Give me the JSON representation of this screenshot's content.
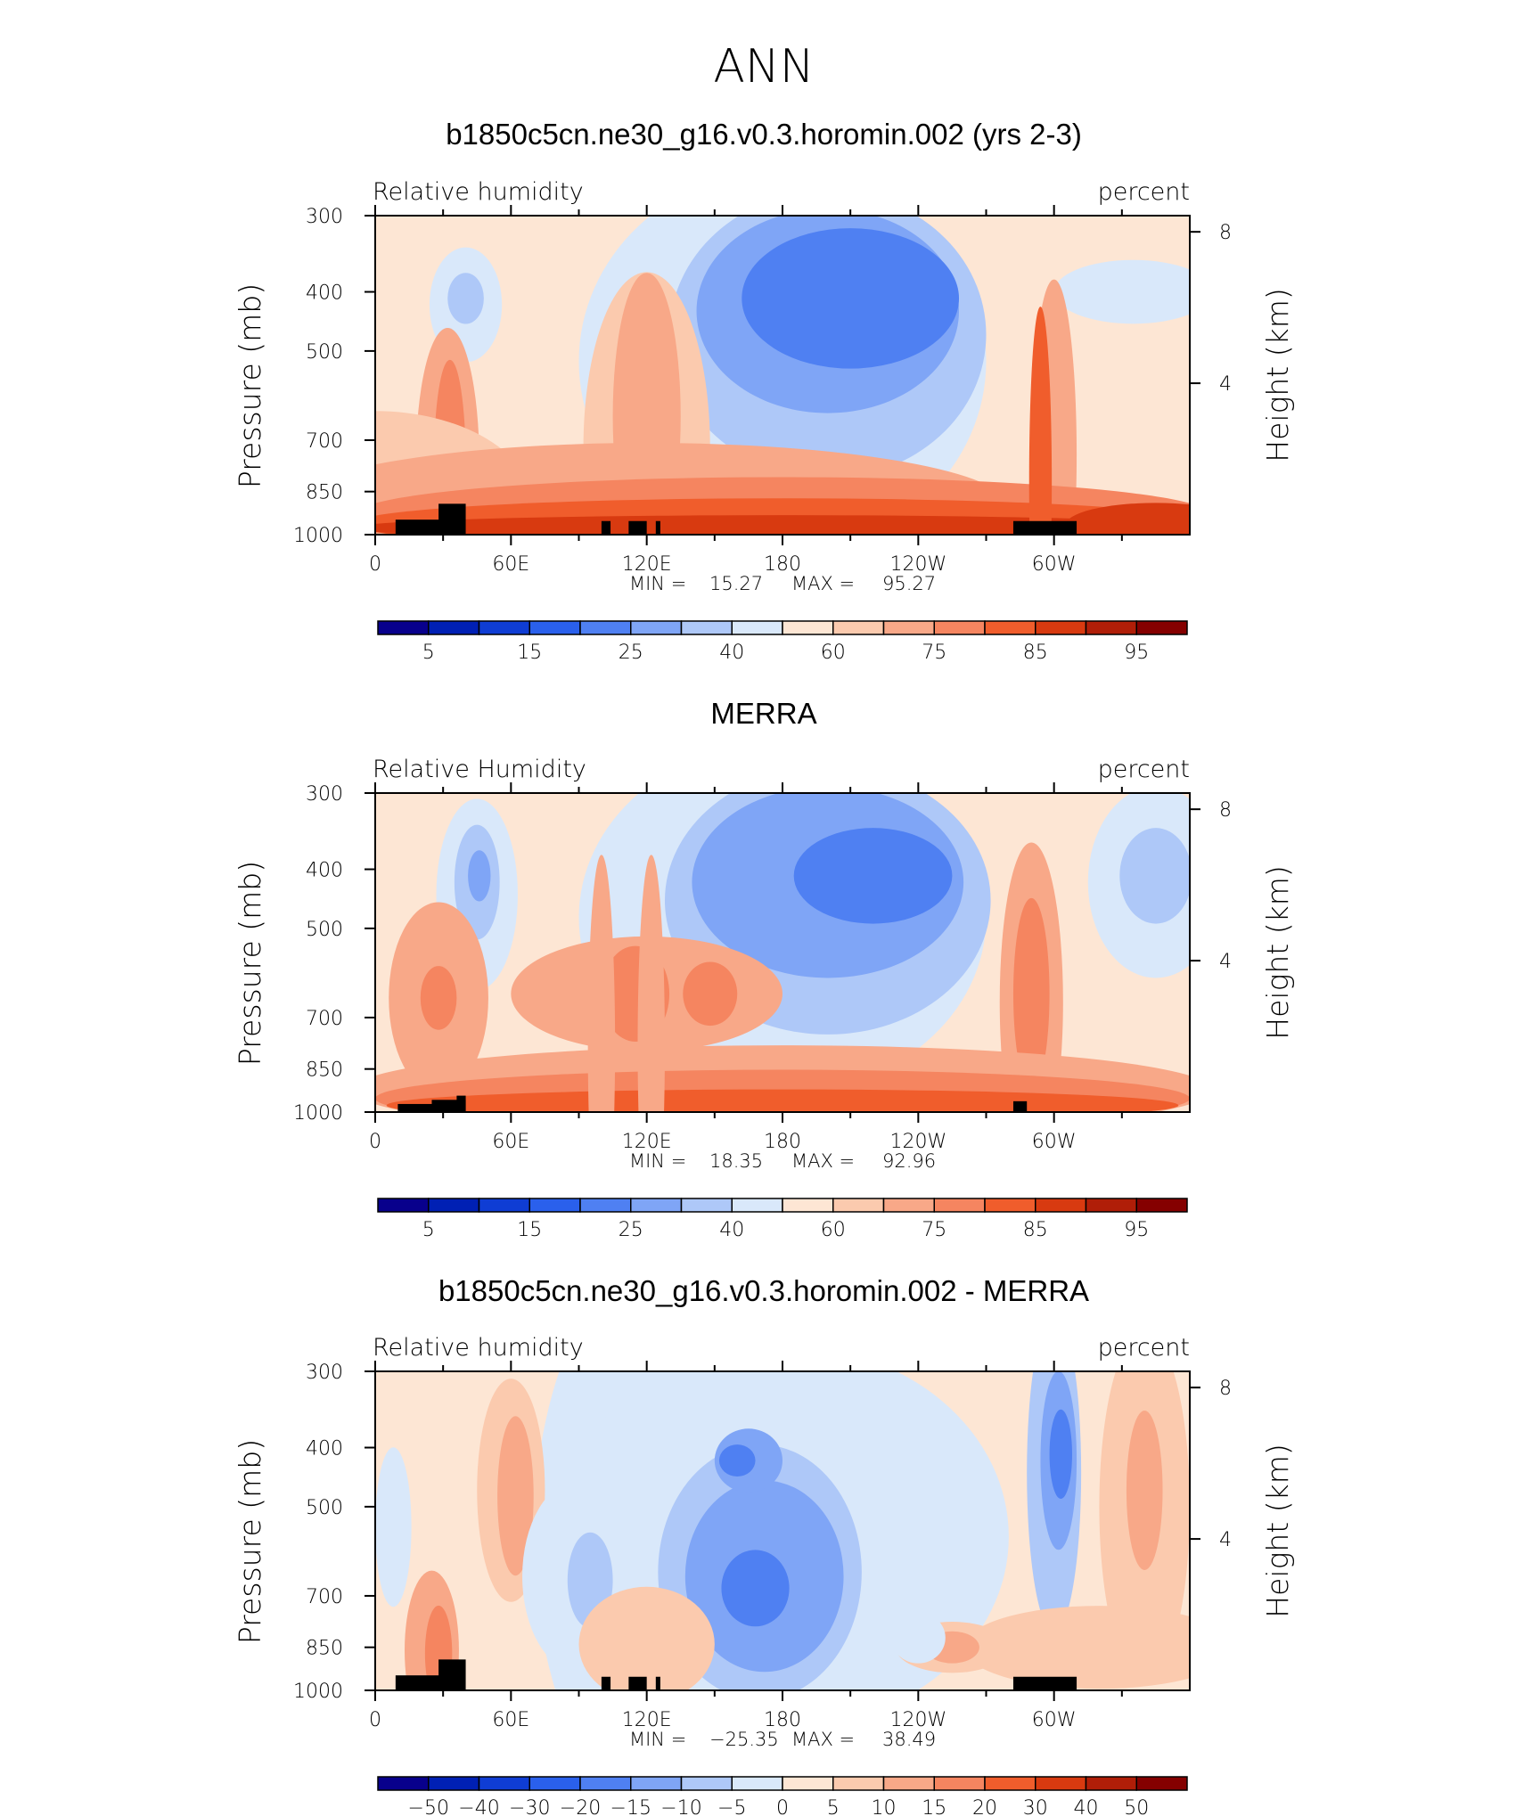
{
  "figure_title": "ANN",
  "colors": {
    "full": [
      "#08008c",
      "#0020b4",
      "#0f3dd4",
      "#2a60ec",
      "#4f80f2",
      "#7fa5f6",
      "#aec8f8",
      "#d9e8fa",
      "#fde6d4",
      "#fbcaae",
      "#f8a888",
      "#f58560",
      "#f05d2c",
      "#d83a10",
      "#b01e08",
      "#850000"
    ],
    "mask": "#000000"
  },
  "chart_data": [
    {
      "type": "heatmap",
      "panel": "model",
      "title": "b1850c5cn.ne30_g16.v0.3.horomin.002 (yrs 2-3)",
      "left_label": "Relative humidity",
      "right_label": "percent",
      "stats": {
        "min_label": "MIN =",
        "min": "15.27",
        "max_label": "MAX =",
        "max": "95.27"
      },
      "ylabel": "Pressure (mb)",
      "ylabel_right": "Height (km)",
      "yticks": [
        "300",
        "400",
        "500",
        "700",
        "850",
        "1000"
      ],
      "yticks_right": [
        "8",
        "4"
      ],
      "xticks": [
        "0",
        "60E",
        "120E",
        "180",
        "120W",
        "60W"
      ],
      "xlim": [
        0,
        360
      ],
      "ylim": [
        1000,
        300
      ],
      "colorbar_levels": [
        "5",
        "15",
        "25",
        "40",
        "60",
        "75",
        "85",
        "95"
      ]
    },
    {
      "type": "heatmap",
      "panel": "obs",
      "title": "MERRA",
      "left_label": "Relative Humidity",
      "right_label": "percent",
      "stats": {
        "min_label": "MIN =",
        "min": "18.35",
        "max_label": "MAX =",
        "max": "92.96"
      },
      "ylabel": "Pressure (mb)",
      "ylabel_right": "Height (km)",
      "yticks": [
        "300",
        "400",
        "500",
        "700",
        "850",
        "1000"
      ],
      "yticks_right": [
        "8",
        "4"
      ],
      "xticks": [
        "0",
        "60E",
        "120E",
        "180",
        "120W",
        "60W"
      ],
      "xlim": [
        0,
        360
      ],
      "ylim": [
        1000,
        300
      ],
      "colorbar_levels": [
        "5",
        "15",
        "25",
        "40",
        "60",
        "75",
        "85",
        "95"
      ]
    },
    {
      "type": "heatmap",
      "panel": "diff",
      "title": "b1850c5cn.ne30_g16.v0.3.horomin.002 - MERRA",
      "left_label": "Relative humidity",
      "right_label": "percent",
      "stats": {
        "min_label": "MIN =",
        "min": "−25.35",
        "max_label": "MAX =",
        "max": "38.49"
      },
      "ylabel": "Pressure (mb)",
      "ylabel_right": "Height (km)",
      "yticks": [
        "300",
        "400",
        "500",
        "700",
        "850",
        "1000"
      ],
      "yticks_right": [
        "8",
        "4"
      ],
      "xticks": [
        "0",
        "60E",
        "120E",
        "180",
        "120W",
        "60W"
      ],
      "xlim": [
        0,
        360
      ],
      "ylim": [
        1000,
        300
      ],
      "colorbar_levels": [
        "−50",
        "−40",
        "−30",
        "−20",
        "−15",
        "−10",
        "−5",
        "0",
        "5",
        "10",
        "15",
        "20",
        "30",
        "40",
        "50"
      ]
    }
  ]
}
